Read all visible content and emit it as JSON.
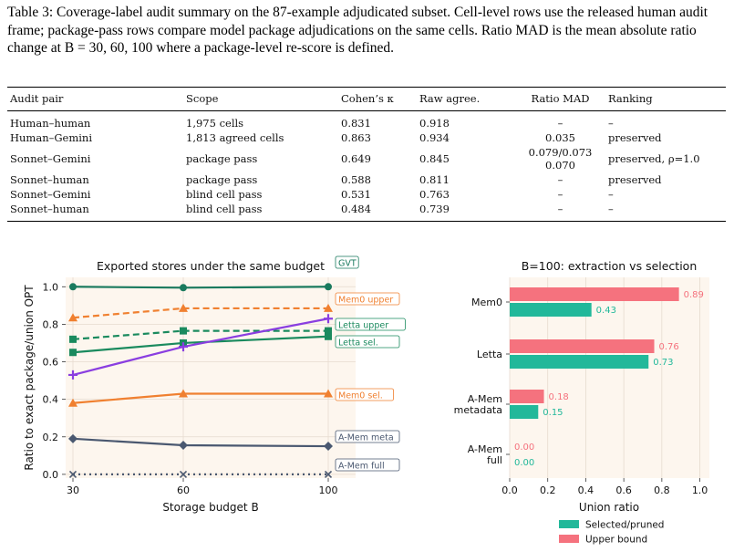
{
  "caption": {
    "text": "Table 3: Coverage-label audit summary on the 87-example adjudicated subset. Cell-level rows use the released human audit frame; package-pass rows compare model package adjudications on the same cells. Ratio MAD is the mean absolute ratio change at B = 30, 60, 100 where a package-level re-score is defined."
  },
  "table": {
    "headers": [
      "Audit pair",
      "Scope",
      "Cohen’s κ",
      "Raw agree.",
      "Ratio MAD",
      "Ranking"
    ],
    "rows": [
      [
        "Human–human",
        "1,975 cells",
        "0.831",
        "0.918",
        "–",
        "–"
      ],
      [
        "Human–Gemini",
        "1,813 agreed cells",
        "0.863",
        "0.934",
        "0.035",
        "preserved"
      ],
      [
        "Sonnet–Gemini",
        "package pass",
        "0.649",
        "0.845",
        "0.079/0.073\n0.070",
        "preserved, ρ=1.0"
      ],
      [
        "Sonnet–human",
        "package pass",
        "0.588",
        "0.811",
        "–",
        "preserved"
      ],
      [
        "Sonnet–Gemini",
        "blind cell pass",
        "0.531",
        "0.763",
        "–",
        "–"
      ],
      [
        "Sonnet–human",
        "blind cell pass",
        "0.484",
        "0.739",
        "–",
        "–"
      ]
    ]
  },
  "chart_data": [
    {
      "type": "line",
      "title": "Exported stores under the same budget",
      "xlabel": "Storage budget B",
      "ylabel": "Ratio to exact package/union OPT",
      "x": [
        30,
        60,
        100
      ],
      "xticks": [
        "30",
        "60",
        "100"
      ],
      "yticks": [
        "0.0",
        "0.2",
        "0.4",
        "0.6",
        "0.8",
        "1.0"
      ],
      "ylim": [
        -0.02,
        1.05
      ],
      "grid": true,
      "series": [
        {
          "name": "GVT",
          "values": [
            1.0,
            0.995,
            1.0
          ],
          "color": "#1a7a5e",
          "style": "solid",
          "marker": "circle"
        },
        {
          "name": "Mem0 upper",
          "values": [
            0.835,
            0.885,
            0.885
          ],
          "color": "#f08030",
          "style": "dashed",
          "marker": "triangle"
        },
        {
          "name": "Letta upper",
          "values": [
            0.72,
            0.765,
            0.765
          ],
          "color": "#1a8a5e",
          "style": "dashed",
          "marker": "square"
        },
        {
          "name": "Letta sel.",
          "values": [
            0.65,
            0.7,
            0.735
          ],
          "color": "#1a8a5e",
          "style": "solid",
          "marker": "square"
        },
        {
          "name": "",
          "values": [
            0.53,
            0.68,
            0.83
          ],
          "color": "#8a3ee0",
          "style": "solid",
          "marker": "plus"
        },
        {
          "name": "Mem0 sel.",
          "values": [
            0.38,
            0.43,
            0.43
          ],
          "color": "#f08030",
          "style": "solid",
          "marker": "triangle"
        },
        {
          "name": "A-Mem meta",
          "values": [
            0.19,
            0.155,
            0.15
          ],
          "color": "#4a5870",
          "style": "solid",
          "marker": "diamond"
        },
        {
          "name": "A-Mem full",
          "values": [
            0.0,
            0.0,
            0.0
          ],
          "color": "#4a5870",
          "style": "dotted",
          "marker": "x"
        }
      ]
    },
    {
      "type": "bar",
      "orientation": "horizontal",
      "title": "B=100: extraction vs selection",
      "xlabel": "Union ratio",
      "categories": [
        "Mem0",
        "Letta",
        "A-Mem\nmetadata",
        "A-Mem\nfull"
      ],
      "xticks": [
        "0.0",
        "0.2",
        "0.4",
        "0.6",
        "0.8",
        "1.0"
      ],
      "xlim": [
        0,
        1.05
      ],
      "grid": true,
      "legend": "bottom",
      "series": [
        {
          "name": "Upper bound",
          "values": [
            0.89,
            0.76,
            0.18,
            0.0
          ],
          "labels": [
            "0.89",
            "0.76",
            "0.18",
            "0.00"
          ],
          "color": "#f5727e"
        },
        {
          "name": "Selected/pruned",
          "values": [
            0.43,
            0.73,
            0.15,
            0.0
          ],
          "labels": [
            "0.43",
            "0.73",
            "0.15",
            "0.00"
          ],
          "color": "#22b89a"
        }
      ]
    }
  ]
}
